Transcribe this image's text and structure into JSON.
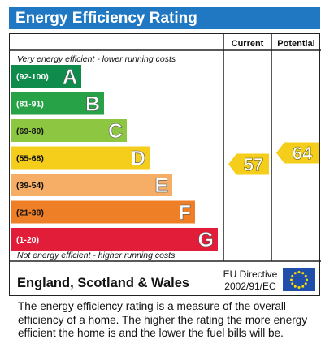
{
  "title": "Energy Efficiency Rating",
  "columns": {
    "current": "Current",
    "potential": "Potential"
  },
  "top_note": "Very energy efficient - lower running costs",
  "bottom_note": "Not energy efficient - higher running costs",
  "region": "England, Scotland & Wales",
  "directive": [
    "EU Directive",
    "2002/91/EC"
  ],
  "description": "The energy efficiency rating is a measure of the overall efficiency of a home. The higher the rating the more energy efficient the home is and the lower the fuel bills will be.",
  "chart_data": {
    "type": "bar",
    "bands": [
      {
        "range": "(92-100)",
        "letter": "A",
        "color": "#0f8c4b"
      },
      {
        "range": "(81-91)",
        "letter": "B",
        "color": "#27a247"
      },
      {
        "range": "(69-80)",
        "letter": "C",
        "color": "#8dc641"
      },
      {
        "range": "(55-68)",
        "letter": "D",
        "color": "#f5cd1b"
      },
      {
        "range": "(39-54)",
        "letter": "E",
        "color": "#f6ae67"
      },
      {
        "range": "(21-38)",
        "letter": "F",
        "color": "#ef7f26"
      },
      {
        "range": "(1-20)",
        "letter": "G",
        "color": "#e21d39"
      }
    ],
    "current": {
      "value": 57,
      "band": "D",
      "color": "#f5cd1b"
    },
    "potential": {
      "value": 64,
      "band": "D",
      "color": "#f5cd1b"
    }
  }
}
